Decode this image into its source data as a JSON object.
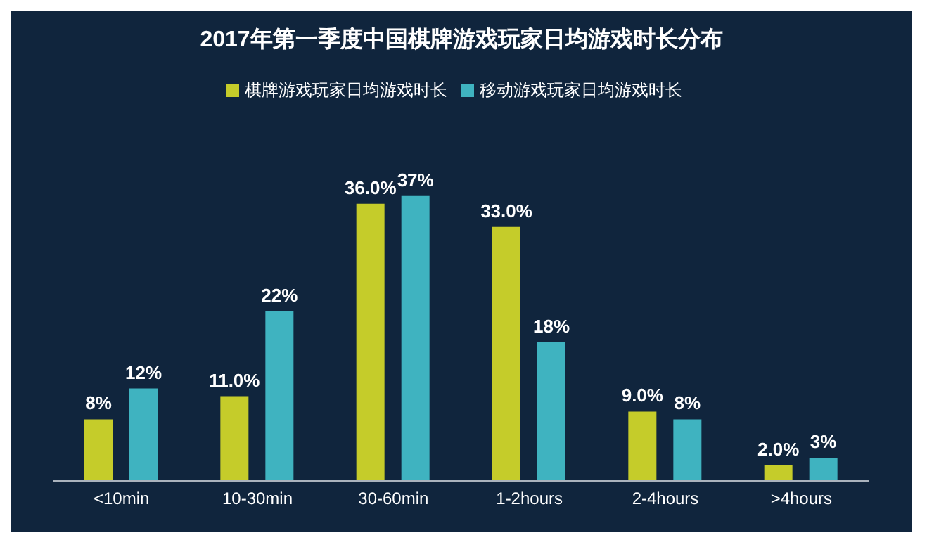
{
  "chart_data": {
    "type": "bar",
    "title": "2017年第一季度中国棋牌游戏玩家日均游戏时长分布",
    "categories": [
      "<10min",
      "10-30min",
      "30-60min",
      "1-2hours",
      "2-4hours",
      ">4hours"
    ],
    "series": [
      {
        "name": "棋牌游戏玩家日均游戏时长",
        "color": "#c5cc2a",
        "values": [
          8,
          11,
          36,
          33,
          9,
          2
        ],
        "value_labels": [
          "8%",
          "11.0%",
          "36.0%",
          "33.0%",
          "9.0%",
          "2.0%"
        ]
      },
      {
        "name": "移动游戏玩家日均游戏时长",
        "color": "#3fb3c0",
        "values": [
          12,
          22,
          37,
          18,
          8,
          3
        ],
        "value_labels": [
          "12%",
          "22%",
          "37%",
          "18%",
          "8%",
          "3%"
        ]
      }
    ],
    "legend": "top",
    "grid": false
  }
}
